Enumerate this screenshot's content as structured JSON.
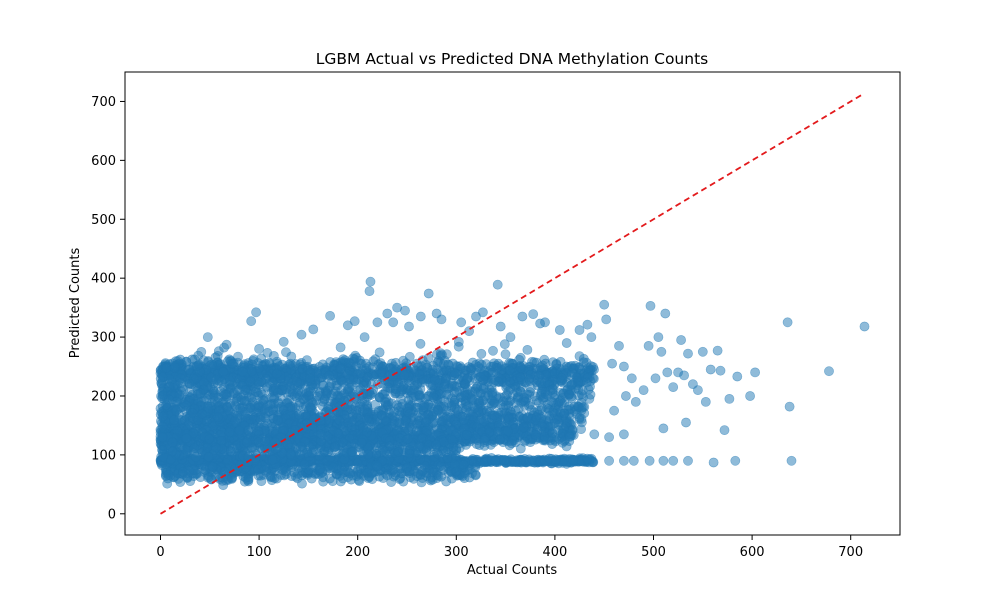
{
  "chart_data": {
    "type": "scatter",
    "title": "LGBM Actual vs Predicted DNA Methylation Counts",
    "xlabel": "Actual Counts",
    "ylabel": "Predicted Counts",
    "xlim": [
      -36,
      750
    ],
    "ylim": [
      -36,
      750
    ],
    "xticks": [
      0,
      100,
      200,
      300,
      400,
      500,
      600,
      700
    ],
    "yticks": [
      0,
      100,
      200,
      300,
      400,
      500,
      600,
      700
    ],
    "grid": false,
    "legend": "none",
    "reference_line": {
      "x": [
        0,
        713
      ],
      "y": [
        0,
        713
      ],
      "style": "dashed",
      "color": "#e31a1c"
    },
    "series": [
      {
        "color": "#1f77b4",
        "opacity": 0.5,
        "clusters": [
          {
            "x_range": [
              0,
              440
            ],
            "y_center": 90,
            "y_spread": 2
          },
          {
            "x_range": [
              5,
              320
            ],
            "y_center": 75,
            "y_spread": 10
          },
          {
            "x_range": [
              0,
              440
            ],
            "y_center": 240,
            "y_spread": 10
          },
          {
            "x_range": [
              0,
              440
            ],
            "y_center": 220,
            "y_spread": 25
          },
          {
            "x_range": [
              0,
              430
            ],
            "y_center": 180,
            "y_spread": 25
          },
          {
            "x_range": [
              0,
              420
            ],
            "y_center": 155,
            "y_spread": 12
          },
          {
            "x_range": [
              0,
              420
            ],
            "y_center": 130,
            "y_spread": 8
          },
          {
            "x_range": [
              0,
              300
            ],
            "y_center": 110,
            "y_spread": 12
          }
        ],
        "points": [
          {
            "x": 2,
            "y": 232
          },
          {
            "x": 2,
            "y": 200
          },
          {
            "x": 2,
            "y": 165
          },
          {
            "x": 2,
            "y": 148
          },
          {
            "x": 2,
            "y": 130
          },
          {
            "x": 20,
            "y": 262
          },
          {
            "x": 48,
            "y": 300
          },
          {
            "x": 58,
            "y": 268
          },
          {
            "x": 67,
            "y": 287
          },
          {
            "x": 92,
            "y": 327
          },
          {
            "x": 97,
            "y": 342
          },
          {
            "x": 100,
            "y": 280
          },
          {
            "x": 115,
            "y": 268
          },
          {
            "x": 125,
            "y": 292
          },
          {
            "x": 143,
            "y": 304
          },
          {
            "x": 155,
            "y": 313
          },
          {
            "x": 172,
            "y": 336
          },
          {
            "x": 190,
            "y": 320
          },
          {
            "x": 197,
            "y": 327
          },
          {
            "x": 207,
            "y": 300
          },
          {
            "x": 213,
            "y": 394
          },
          {
            "x": 212,
            "y": 378
          },
          {
            "x": 220,
            "y": 325
          },
          {
            "x": 230,
            "y": 340
          },
          {
            "x": 236,
            "y": 325
          },
          {
            "x": 240,
            "y": 350
          },
          {
            "x": 248,
            "y": 345
          },
          {
            "x": 252,
            "y": 318
          },
          {
            "x": 264,
            "y": 335
          },
          {
            "x": 272,
            "y": 374
          },
          {
            "x": 280,
            "y": 340
          },
          {
            "x": 285,
            "y": 330
          },
          {
            "x": 305,
            "y": 325
          },
          {
            "x": 313,
            "y": 310
          },
          {
            "x": 320,
            "y": 335
          },
          {
            "x": 327,
            "y": 342
          },
          {
            "x": 342,
            "y": 389
          },
          {
            "x": 345,
            "y": 318
          },
          {
            "x": 355,
            "y": 300
          },
          {
            "x": 367,
            "y": 335
          },
          {
            "x": 378,
            "y": 339
          },
          {
            "x": 385,
            "y": 323
          },
          {
            "x": 390,
            "y": 325
          },
          {
            "x": 405,
            "y": 312
          },
          {
            "x": 412,
            "y": 290
          },
          {
            "x": 425,
            "y": 312
          },
          {
            "x": 433,
            "y": 321
          },
          {
            "x": 437,
            "y": 300
          },
          {
            "x": 450,
            "y": 355
          },
          {
            "x": 452,
            "y": 330
          },
          {
            "x": 458,
            "y": 255
          },
          {
            "x": 465,
            "y": 285
          },
          {
            "x": 470,
            "y": 250
          },
          {
            "x": 472,
            "y": 200
          },
          {
            "x": 478,
            "y": 230
          },
          {
            "x": 482,
            "y": 190
          },
          {
            "x": 490,
            "y": 210
          },
          {
            "x": 495,
            "y": 285
          },
          {
            "x": 497,
            "y": 353
          },
          {
            "x": 502,
            "y": 230
          },
          {
            "x": 505,
            "y": 300
          },
          {
            "x": 508,
            "y": 275
          },
          {
            "x": 510,
            "y": 145
          },
          {
            "x": 512,
            "y": 340
          },
          {
            "x": 514,
            "y": 240
          },
          {
            "x": 520,
            "y": 215
          },
          {
            "x": 525,
            "y": 240
          },
          {
            "x": 528,
            "y": 295
          },
          {
            "x": 531,
            "y": 235
          },
          {
            "x": 533,
            "y": 155
          },
          {
            "x": 535,
            "y": 272
          },
          {
            "x": 540,
            "y": 220
          },
          {
            "x": 545,
            "y": 210
          },
          {
            "x": 550,
            "y": 275
          },
          {
            "x": 553,
            "y": 190
          },
          {
            "x": 558,
            "y": 245
          },
          {
            "x": 565,
            "y": 277
          },
          {
            "x": 568,
            "y": 243
          },
          {
            "x": 572,
            "y": 142
          },
          {
            "x": 577,
            "y": 195
          },
          {
            "x": 585,
            "y": 233
          },
          {
            "x": 598,
            "y": 200
          },
          {
            "x": 603,
            "y": 240
          },
          {
            "x": 636,
            "y": 325
          },
          {
            "x": 638,
            "y": 182
          },
          {
            "x": 678,
            "y": 242
          },
          {
            "x": 714,
            "y": 318
          },
          {
            "x": 640,
            "y": 90
          },
          {
            "x": 583,
            "y": 90
          },
          {
            "x": 561,
            "y": 87
          },
          {
            "x": 535,
            "y": 90
          },
          {
            "x": 520,
            "y": 90
          },
          {
            "x": 510,
            "y": 90
          },
          {
            "x": 496,
            "y": 90
          },
          {
            "x": 480,
            "y": 90
          },
          {
            "x": 470,
            "y": 90
          },
          {
            "x": 455,
            "y": 90
          },
          {
            "x": 440,
            "y": 135
          },
          {
            "x": 455,
            "y": 130
          },
          {
            "x": 470,
            "y": 135
          },
          {
            "x": 460,
            "y": 175
          },
          {
            "x": 300,
            "y": 72
          },
          {
            "x": 165,
            "y": 62
          },
          {
            "x": 210,
            "y": 70
          },
          {
            "x": 230,
            "y": 65
          },
          {
            "x": 220,
            "y": 80
          },
          {
            "x": 185,
            "y": 60
          },
          {
            "x": 250,
            "y": 78
          },
          {
            "x": 265,
            "y": 72
          }
        ]
      }
    ]
  }
}
